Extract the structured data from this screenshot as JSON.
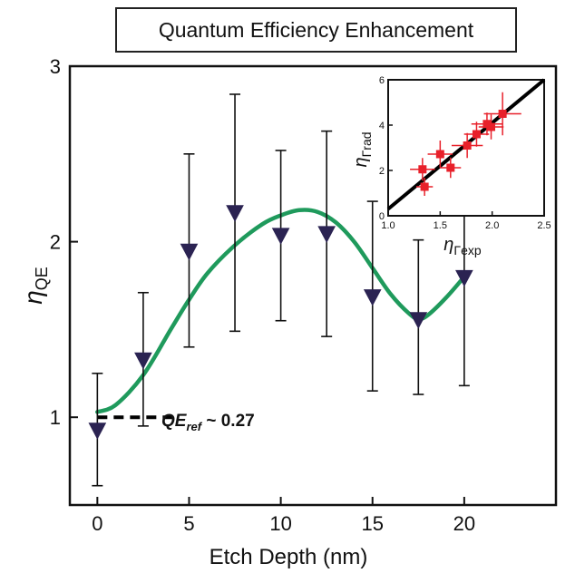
{
  "chart_data": [
    {
      "type": "scatter",
      "title": "Quantum Efficiency Enhancement",
      "xlabel": "Etch Depth (nm)",
      "ylabel": "η",
      "ylabel_sub": "QE",
      "xlim": [
        -1.5,
        25
      ],
      "ylim": [
        0.5,
        3
      ],
      "xticks": [
        "0",
        "5",
        "10",
        "15",
        "20"
      ],
      "yticks": [
        "1",
        "2",
        "3"
      ],
      "grid": false,
      "series": [
        {
          "marker": "downward-triangle",
          "color": "#2b2352",
          "x": [
            0,
            2.5,
            5,
            7.5,
            10,
            12.5,
            15,
            17.5,
            20
          ],
          "y": [
            0.93,
            1.33,
            1.95,
            2.17,
            2.04,
            2.05,
            1.69,
            1.56,
            1.8
          ],
          "y_upper": [
            1.25,
            1.71,
            2.5,
            2.84,
            2.52,
            2.63,
            2.23,
            2.01,
            2.41
          ],
          "y_lower": [
            0.61,
            0.95,
            1.4,
            1.49,
            1.55,
            1.46,
            1.15,
            1.13,
            1.18
          ]
        },
        {
          "line_type": "smooth-fit",
          "color": "#1f9a5c",
          "x": [
            0,
            1,
            2.5,
            4,
            5,
            6,
            7.5,
            9,
            10,
            11,
            12,
            13,
            14,
            15,
            16,
            17,
            17.5,
            18,
            19,
            20
          ],
          "y": [
            1.03,
            1.07,
            1.24,
            1.5,
            1.67,
            1.82,
            1.98,
            2.1,
            2.15,
            2.18,
            2.17,
            2.11,
            2.0,
            1.85,
            1.7,
            1.59,
            1.56,
            1.58,
            1.68,
            1.8
          ]
        }
      ],
      "reference": {
        "y": 1.0,
        "x_range": [
          0,
          4.3
        ],
        "color": "#000000",
        "label": "QE",
        "label_sub": "ref",
        "label_suffix": " ~ 0.27"
      }
    },
    {
      "type": "scatter",
      "xlabel": "η",
      "xlabel_sub": "Γexp",
      "ylabel": "η",
      "ylabel_sub": "Γrad",
      "xlim": [
        1.0,
        2.5
      ],
      "ylim": [
        0,
        6
      ],
      "xticks": [
        "1.0",
        "1.5",
        "2.0",
        "2.5"
      ],
      "yticks": [
        "0",
        "2",
        "4",
        "6"
      ],
      "points": {
        "color": "#e8202a",
        "x": [
          1.33,
          1.35,
          1.5,
          1.6,
          1.76,
          1.85,
          1.95,
          1.99,
          2.1
        ],
        "y": [
          2.05,
          1.28,
          2.72,
          2.12,
          3.1,
          3.6,
          4.05,
          3.92,
          4.5
        ],
        "x_err": [
          0.12,
          0.08,
          0.12,
          0.1,
          0.15,
          0.12,
          0.15,
          0.12,
          0.18
        ],
        "y_err": [
          0.5,
          0.4,
          0.6,
          0.45,
          0.55,
          0.55,
          0.5,
          0.55,
          0.95
        ]
      },
      "fit_line": {
        "color": "#000000",
        "x": [
          1.0,
          2.5
        ],
        "y": [
          0.3,
          6.0
        ]
      }
    }
  ]
}
